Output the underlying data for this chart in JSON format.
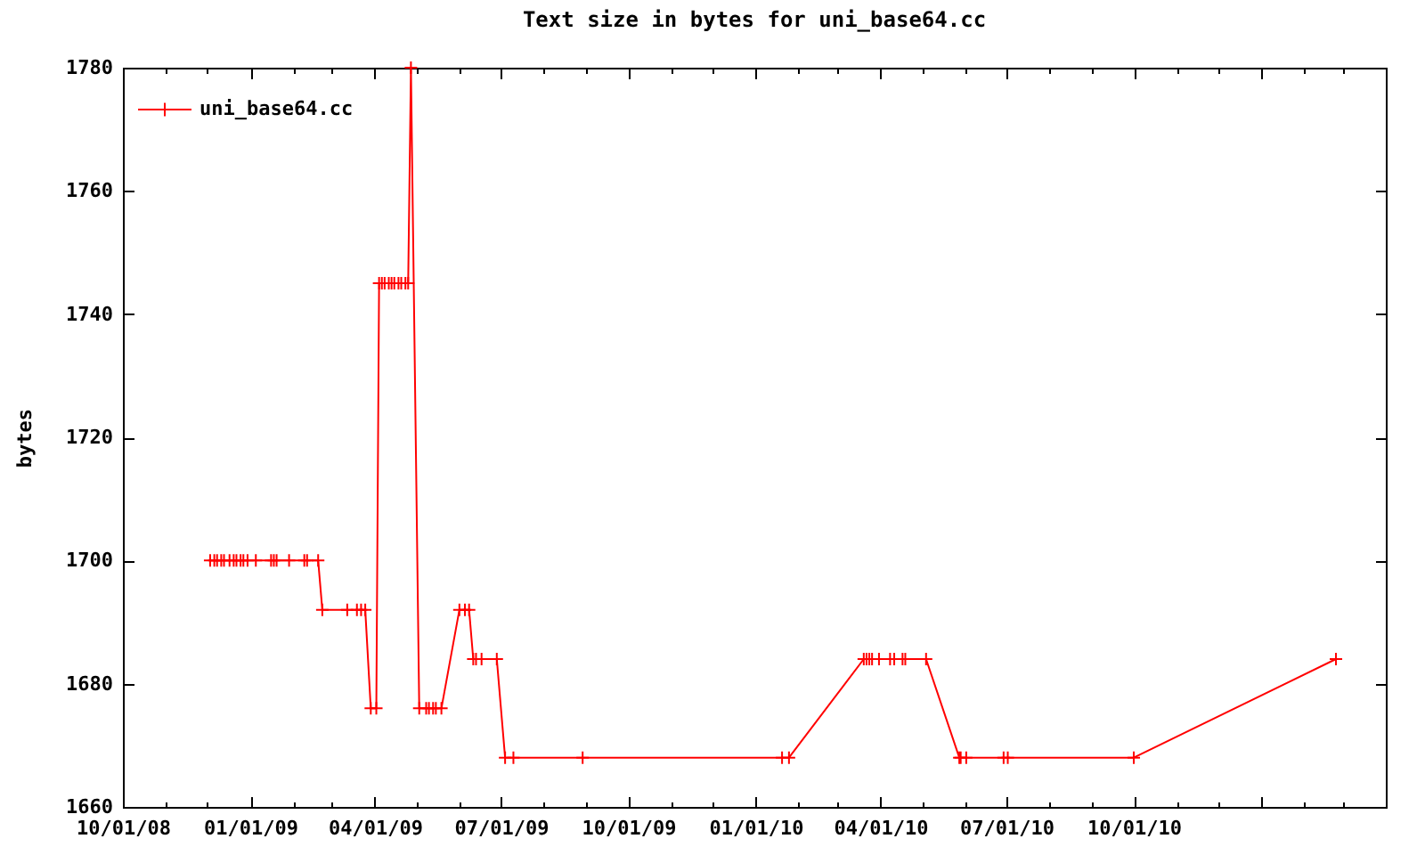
{
  "chart_data": {
    "type": "line",
    "title": "Text size in bytes for uni_base64.cc",
    "ylabel": "bytes",
    "x": [
      "2008-12-03",
      "2008-12-06",
      "2008-12-08",
      "2008-12-11",
      "2008-12-13",
      "2008-12-17",
      "2008-12-20",
      "2008-12-22",
      "2008-12-25",
      "2008-12-27",
      "2008-12-30",
      "2009-01-05",
      "2009-01-16",
      "2009-01-18",
      "2009-01-20",
      "2009-01-29",
      "2009-02-09",
      "2009-02-11",
      "2009-02-19",
      "2009-02-22",
      "2009-03-12",
      "2009-03-19",
      "2009-03-22",
      "2009-03-25",
      "2009-03-29",
      "2009-04-02",
      "2009-04-04",
      "2009-04-06",
      "2009-04-08",
      "2009-04-11",
      "2009-04-13",
      "2009-04-15",
      "2009-04-18",
      "2009-04-20",
      "2009-04-23",
      "2009-04-25",
      "2009-04-27",
      "2009-05-03",
      "2009-05-08",
      "2009-05-10",
      "2009-05-13",
      "2009-05-15",
      "2009-05-19",
      "2009-06-01",
      "2009-06-05",
      "2009-06-08",
      "2009-06-11",
      "2009-06-13",
      "2009-06-17",
      "2009-06-28",
      "2009-07-04",
      "2009-07-10",
      "2009-08-29",
      "2010-01-20",
      "2010-01-25",
      "2010-03-20",
      "2010-03-22",
      "2010-03-24",
      "2010-03-26",
      "2010-03-31",
      "2010-04-08",
      "2010-04-11",
      "2010-04-17",
      "2010-04-19",
      "2010-05-04",
      "2010-05-28",
      "2010-05-29",
      "2010-06-02",
      "2010-06-29",
      "2010-07-02",
      "2010-10-01",
      "2011-02-24"
    ],
    "series": [
      {
        "name": "uni_base64.cc",
        "color": "#ff0000",
        "values": [
          1700,
          1700,
          1700,
          1700,
          1700,
          1700,
          1700,
          1700,
          1700,
          1700,
          1700,
          1700,
          1700,
          1700,
          1700,
          1700,
          1700,
          1700,
          1700,
          1692,
          1692,
          1692,
          1692,
          1692,
          1676,
          1676,
          1745,
          1745,
          1745,
          1745,
          1745,
          1745,
          1745,
          1745,
          1745,
          1745,
          1780,
          1676,
          1676,
          1676,
          1676,
          1676,
          1676,
          1692,
          1692,
          1692,
          1684,
          1684,
          1684,
          1684,
          1668,
          1668,
          1668,
          1668,
          1668,
          1684,
          1684,
          1684,
          1684,
          1684,
          1684,
          1684,
          1684,
          1684,
          1684,
          1668,
          1668,
          1668,
          1668,
          1668,
          1668,
          1684
        ]
      }
    ],
    "xlim": [
      "2008-10-01",
      "2011-04-01"
    ],
    "xticks": [
      {
        "value": "2008-10-01",
        "label": "10/01/08"
      },
      {
        "value": "2008-11-01",
        "label": null
      },
      {
        "value": "2008-12-01",
        "label": null
      },
      {
        "value": "2009-01-01",
        "label": "01/01/09"
      },
      {
        "value": "2009-02-01",
        "label": null
      },
      {
        "value": "2009-03-01",
        "label": null
      },
      {
        "value": "2009-04-01",
        "label": "04/01/09"
      },
      {
        "value": "2009-05-01",
        "label": null
      },
      {
        "value": "2009-06-01",
        "label": null
      },
      {
        "value": "2009-07-01",
        "label": "07/01/09"
      },
      {
        "value": "2009-08-01",
        "label": null
      },
      {
        "value": "2009-09-01",
        "label": null
      },
      {
        "value": "2009-10-01",
        "label": "10/01/09"
      },
      {
        "value": "2009-11-01",
        "label": null
      },
      {
        "value": "2009-12-01",
        "label": null
      },
      {
        "value": "2010-01-01",
        "label": "01/01/10"
      },
      {
        "value": "2010-02-01",
        "label": null
      },
      {
        "value": "2010-03-01",
        "label": null
      },
      {
        "value": "2010-04-01",
        "label": "04/01/10"
      },
      {
        "value": "2010-05-01",
        "label": null
      },
      {
        "value": "2010-06-01",
        "label": null
      },
      {
        "value": "2010-07-01",
        "label": "07/01/10"
      },
      {
        "value": "2010-08-01",
        "label": null
      },
      {
        "value": "2010-09-01",
        "label": null
      },
      {
        "value": "2010-10-01",
        "label": "10/01/10"
      },
      {
        "value": "2010-11-01",
        "label": null
      },
      {
        "value": "2010-12-01",
        "label": null
      },
      {
        "value": "2011-01-01",
        "label": null
      },
      {
        "value": "2011-02-01",
        "label": null
      },
      {
        "value": "2011-03-01",
        "label": null
      },
      {
        "value": "2011-04-01",
        "label": null
      }
    ],
    "ylim": [
      1660,
      1780
    ],
    "yticks": [
      1660,
      1680,
      1700,
      1720,
      1740,
      1760,
      1780
    ],
    "grid": false,
    "legend": "top left",
    "marker": "cross",
    "line_style": "solid"
  }
}
